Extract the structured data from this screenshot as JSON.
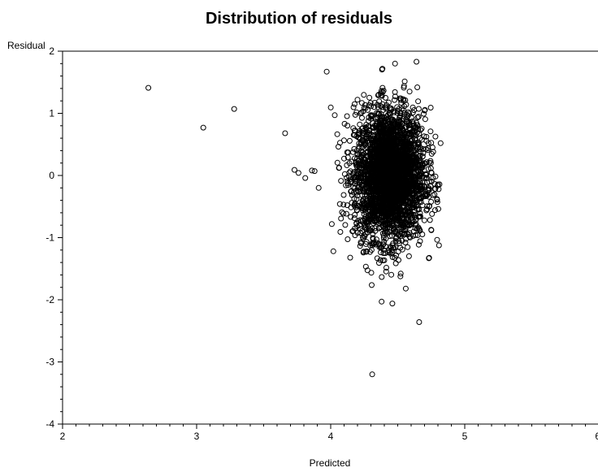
{
  "chart_data": {
    "type": "scatter",
    "title": "Distribution of residuals",
    "xlabel": "Predicted",
    "ylabel": "Residual",
    "xlim": [
      2,
      6
    ],
    "ylim": [
      -4,
      2
    ],
    "x_ticks": [
      "2",
      "3",
      "4",
      "5",
      "6"
    ],
    "y_ticks": [
      "2",
      "1",
      "0",
      "-1",
      "-2",
      "-3",
      "-4"
    ],
    "marker": "open-circle",
    "grid": false,
    "legend": "none",
    "points_outliers": [
      [
        2.64,
        1.41
      ],
      [
        3.05,
        0.77
      ],
      [
        3.28,
        1.07
      ],
      [
        3.66,
        0.68
      ],
      [
        3.97,
        1.67
      ],
      [
        3.73,
        0.09
      ],
      [
        3.76,
        0.04
      ],
      [
        3.81,
        -0.04
      ],
      [
        3.86,
        0.08
      ],
      [
        3.88,
        0.07
      ],
      [
        3.91,
        -0.2
      ],
      [
        4.02,
        -1.22
      ],
      [
        4.38,
        -2.03
      ],
      [
        4.46,
        -2.06
      ],
      [
        4.66,
        -2.36
      ],
      [
        4.31,
        -3.2
      ],
      [
        4.03,
        0.97
      ],
      [
        4.64,
        1.83
      ],
      [
        4.48,
        1.8
      ],
      [
        4.82,
        0.52
      ],
      [
        4.2,
        1.22
      ],
      [
        4.56,
        -1.82
      ]
    ],
    "cluster": {
      "center_x": 4.44,
      "center_y": 0.0,
      "sd_x": 0.13,
      "sd_y": 0.52,
      "count": 3200,
      "x_range": [
        4.0,
        4.82
      ],
      "y_range": [
        -1.8,
        1.8
      ]
    }
  }
}
